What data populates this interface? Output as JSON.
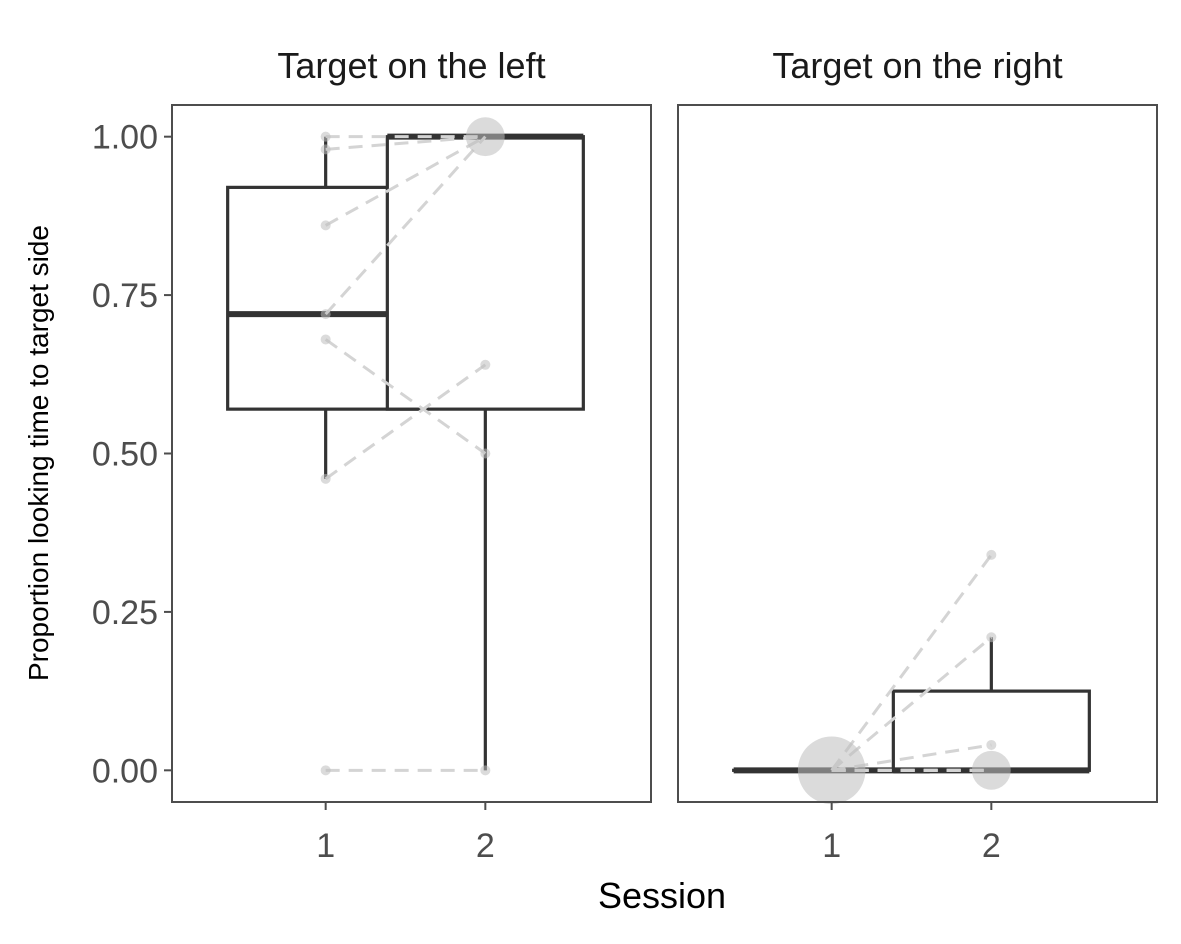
{
  "chart_data": {
    "type": "boxplot",
    "xlabel": "Session",
    "ylabel": "Proportion looking time to target side",
    "ylim": [
      -0.05,
      1.05
    ],
    "y_ticks": [
      {
        "value": 0.0,
        "label": "0.00"
      },
      {
        "value": 0.25,
        "label": "0.25"
      },
      {
        "value": 0.5,
        "label": "0.50"
      },
      {
        "value": 0.75,
        "label": "0.75"
      },
      {
        "value": 1.0,
        "label": "1.00"
      }
    ],
    "categories": [
      "1",
      "2"
    ],
    "grid": false,
    "panels": [
      {
        "title": "Target on the left",
        "boxes": [
          {
            "session": "1",
            "lower_whisker": 0.46,
            "q1": 0.57,
            "median": 0.72,
            "q3": 0.92,
            "upper_whisker": 1.0
          },
          {
            "session": "2",
            "lower_whisker": 0.0,
            "q1": 0.57,
            "median": 1.0,
            "q3": 1.0,
            "upper_whisker": 1.0
          }
        ],
        "pairs": [
          [
            1.0,
            1.0
          ],
          [
            0.98,
            1.0
          ],
          [
            0.86,
            1.0
          ],
          [
            0.72,
            1.0
          ],
          [
            0.68,
            0.5
          ],
          [
            0.46,
            0.64
          ],
          [
            0.0,
            0.0
          ]
        ],
        "points": [
          {
            "session": "1",
            "value": 1.0,
            "count": 1
          },
          {
            "session": "1",
            "value": 0.98,
            "count": 1
          },
          {
            "session": "1",
            "value": 0.86,
            "count": 1
          },
          {
            "session": "1",
            "value": 0.72,
            "count": 1
          },
          {
            "session": "1",
            "value": 0.68,
            "count": 1
          },
          {
            "session": "1",
            "value": 0.46,
            "count": 1
          },
          {
            "session": "1",
            "value": 0.0,
            "count": 1
          },
          {
            "session": "2",
            "value": 1.0,
            "count": 4
          },
          {
            "session": "2",
            "value": 0.64,
            "count": 1
          },
          {
            "session": "2",
            "value": 0.5,
            "count": 1
          },
          {
            "session": "2",
            "value": 0.0,
            "count": 1
          }
        ]
      },
      {
        "title": "Target on the right",
        "boxes": [
          {
            "session": "1",
            "lower_whisker": 0.0,
            "q1": 0.0,
            "median": 0.0,
            "q3": 0.0,
            "upper_whisker": 0.0
          },
          {
            "session": "2",
            "lower_whisker": 0.0,
            "q1": 0.0,
            "median": 0.0,
            "q3": 0.125,
            "upper_whisker": 0.21
          }
        ],
        "pairs": [
          [
            0.0,
            0.34
          ],
          [
            0.0,
            0.21
          ],
          [
            0.0,
            0.04
          ],
          [
            0.0,
            0.0
          ],
          [
            0.0,
            0.0
          ],
          [
            0.0,
            0.0
          ],
          [
            0.0,
            0.0
          ]
        ],
        "points": [
          {
            "session": "1",
            "value": 0.0,
            "count": 7
          },
          {
            "session": "2",
            "value": 0.34,
            "count": 1
          },
          {
            "session": "2",
            "value": 0.21,
            "count": 1
          },
          {
            "session": "2",
            "value": 0.04,
            "count": 1
          },
          {
            "session": "2",
            "value": 0.0,
            "count": 4
          }
        ]
      }
    ]
  }
}
